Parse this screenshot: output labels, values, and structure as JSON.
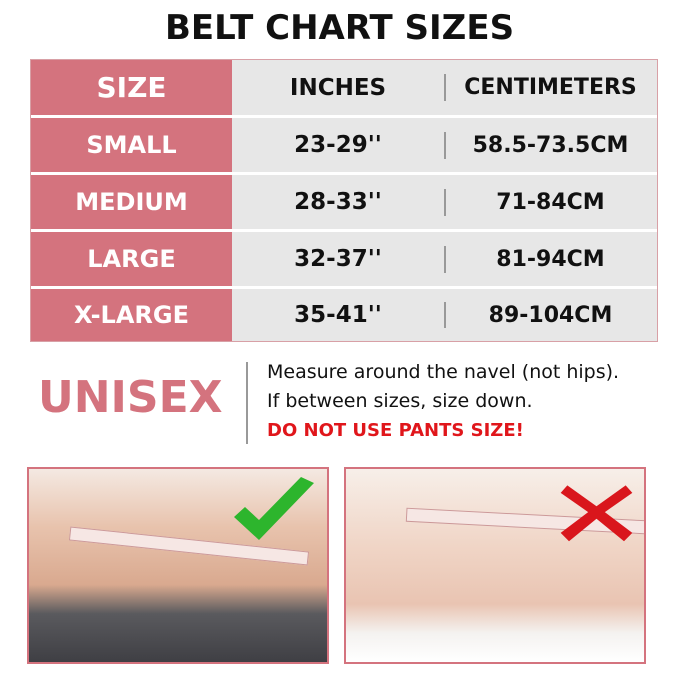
{
  "title": "BELT CHART SIZES",
  "table": {
    "headers": [
      "SIZE",
      "INCHES",
      "CENTIMETERS"
    ],
    "rows": [
      [
        "SMALL",
        "23-29''",
        "58.5-73.5CM"
      ],
      [
        "MEDIUM",
        "28-33''",
        "71-84CM"
      ],
      [
        "LARGE",
        "32-37''",
        "81-94CM"
      ],
      [
        "X-LARGE",
        "35-41''",
        "89-104CM"
      ]
    ]
  },
  "unisex": "UNISEX",
  "notes": [
    "Measure around the navel (not hips).",
    "If between sizes, size down.",
    "DO NOT USE PANTS SIZE!"
  ],
  "photos": [
    {
      "mark": "check-icon",
      "color": "#2db52d"
    },
    {
      "mark": "cross-icon",
      "color": "#d9161c"
    }
  ],
  "colors": {
    "accent": "#d4737e",
    "warning": "#e0161b"
  }
}
